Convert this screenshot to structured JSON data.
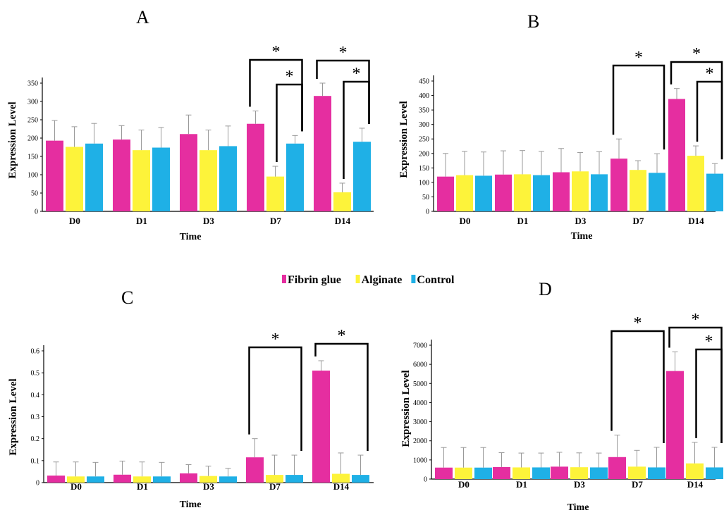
{
  "legend": {
    "entries": [
      {
        "label": "Fibrin glue",
        "color": "#e52ea0"
      },
      {
        "label": "Alginate",
        "color": "#fdf33a"
      },
      {
        "label": "Control",
        "color": "#1fb0e6"
      }
    ]
  },
  "chart_data": [
    {
      "panel": "A",
      "type": "bar",
      "xlabel": "Time",
      "ylabel": "Expression Level",
      "categories": [
        "D0",
        "D1",
        "D3",
        "D7",
        "D14"
      ],
      "ylim": [
        0,
        350
      ],
      "yticks": [
        0,
        50,
        100,
        150,
        200,
        250,
        300,
        350
      ],
      "series": [
        {
          "name": "Fibrin glue",
          "values": [
            193,
            196,
            211,
            239,
            315
          ],
          "errors": [
            55,
            38,
            52,
            35,
            35
          ]
        },
        {
          "name": "Alginate",
          "values": [
            176,
            167,
            167,
            95,
            52
          ],
          "errors": [
            55,
            55,
            55,
            28,
            25
          ]
        },
        {
          "name": "Control",
          "values": [
            185,
            174,
            178,
            185,
            190
          ],
          "errors": [
            55,
            55,
            55,
            22,
            37
          ]
        }
      ],
      "significance": [
        {
          "category": "D7",
          "from": "Fibrin glue",
          "to": "Control",
          "label": "*"
        },
        {
          "category": "D7",
          "from": "Alginate",
          "to": "Control",
          "label": "*"
        },
        {
          "category": "D14",
          "from": "Fibrin glue",
          "to": "Control",
          "label": "*"
        },
        {
          "category": "D14",
          "from": "Alginate",
          "to": "Control",
          "label": "*"
        }
      ]
    },
    {
      "panel": "B",
      "type": "bar",
      "xlabel": "Time",
      "ylabel": "Expression Level",
      "categories": [
        "D0",
        "D1",
        "D3",
        "D7",
        "D14"
      ],
      "ylim": [
        0,
        450
      ],
      "yticks": [
        0,
        50,
        100,
        150,
        200,
        250,
        300,
        350,
        400,
        450
      ],
      "series": [
        {
          "name": "Fibrin glue",
          "values": [
            120,
            127,
            135,
            182,
            388
          ],
          "errors": [
            80,
            82,
            82,
            68,
            36
          ]
        },
        {
          "name": "Alginate",
          "values": [
            125,
            128,
            138,
            143,
            192
          ],
          "errors": [
            82,
            82,
            65,
            32,
            34
          ]
        },
        {
          "name": "Control",
          "values": [
            123,
            125,
            128,
            133,
            130
          ],
          "errors": [
            82,
            82,
            78,
            66,
            35
          ]
        }
      ],
      "significance": [
        {
          "category": "D7",
          "from": "Fibrin glue",
          "to": "Control",
          "label": "*"
        },
        {
          "category": "D14",
          "from": "Fibrin glue",
          "to": "Control",
          "label": "*"
        },
        {
          "category": "D14",
          "from": "Alginate",
          "to": "Control",
          "label": "*"
        }
      ]
    },
    {
      "panel": "C",
      "type": "bar",
      "xlabel": "Time",
      "ylabel": "Expression Level",
      "categories": [
        "D0",
        "D1",
        "D3",
        "D7",
        "D14"
      ],
      "ylim": [
        0,
        0.6
      ],
      "yticks": [
        0,
        0.1,
        0.2,
        0.3,
        0.4,
        0.5,
        0.6
      ],
      "series": [
        {
          "name": "Fibrin glue",
          "values": [
            0.032,
            0.036,
            0.042,
            0.115,
            0.51
          ],
          "errors": [
            0.062,
            0.062,
            0.04,
            0.085,
            0.045
          ]
        },
        {
          "name": "Alginate",
          "values": [
            0.028,
            0.028,
            0.03,
            0.035,
            0.04
          ],
          "errors": [
            0.066,
            0.066,
            0.045,
            0.09,
            0.095
          ]
        },
        {
          "name": "Control",
          "values": [
            0.028,
            0.028,
            0.028,
            0.035,
            0.035
          ],
          "errors": [
            0.064,
            0.064,
            0.037,
            0.09,
            0.09
          ]
        }
      ],
      "significance": [
        {
          "category": "D7",
          "from": "Fibrin glue",
          "to": "Control",
          "label": "*"
        },
        {
          "category": "D14",
          "from": "Fibrin glue",
          "to": "Control",
          "label": "*"
        }
      ]
    },
    {
      "panel": "D",
      "type": "bar",
      "xlabel": "Time",
      "ylabel": "Expression Level",
      "categories": [
        "D0",
        "D1",
        "D3",
        "D7",
        "D14"
      ],
      "ylim": [
        0,
        7000
      ],
      "yticks": [
        0,
        1000,
        2000,
        3000,
        4000,
        5000,
        6000,
        7000
      ],
      "series": [
        {
          "name": "Fibrin glue",
          "values": [
            600,
            630,
            650,
            1150,
            5650
          ],
          "errors": [
            1050,
            750,
            750,
            1150,
            1000
          ]
        },
        {
          "name": "Alginate",
          "values": [
            600,
            610,
            620,
            650,
            820
          ],
          "errors": [
            1050,
            750,
            750,
            850,
            1100
          ]
        },
        {
          "name": "Control",
          "values": [
            600,
            610,
            610,
            610,
            610
          ],
          "errors": [
            1050,
            750,
            750,
            1050,
            1050
          ]
        }
      ],
      "significance": [
        {
          "category": "D7",
          "from": "Fibrin glue",
          "to": "Control",
          "label": "*"
        },
        {
          "category": "D14",
          "from": "Fibrin glue",
          "to": "Control",
          "label": "*"
        },
        {
          "category": "D14",
          "from": "Alginate",
          "to": "Control",
          "label": "*"
        }
      ]
    }
  ]
}
